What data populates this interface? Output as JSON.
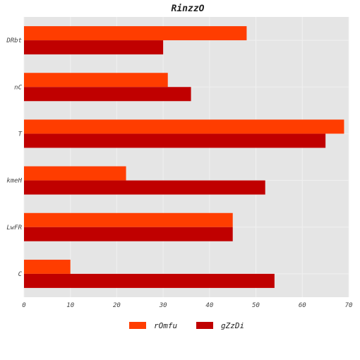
{
  "chart_data": {
    "type": "bar",
    "orientation": "horizontal",
    "title": "RinzzO",
    "categories": [
      "DRbt",
      "nC",
      "T",
      "kmeH",
      "LwFR",
      "C"
    ],
    "series": [
      {
        "name": "rOmfu",
        "values": [
          48,
          31,
          69,
          22,
          45,
          10
        ],
        "color": "#ff3d00"
      },
      {
        "name": "gZzDi",
        "values": [
          30,
          36,
          65,
          52,
          45,
          54
        ],
        "color": "#c00000"
      }
    ],
    "xlim": [
      0,
      70
    ],
    "xticks": [
      0,
      10,
      20,
      30,
      40,
      50,
      60,
      70
    ],
    "xlabel": "",
    "ylabel": "",
    "grid": true,
    "legend_position": "bottom-center",
    "background_color": "#e5e5e5",
    "grid_color": "#f0f0f0"
  }
}
